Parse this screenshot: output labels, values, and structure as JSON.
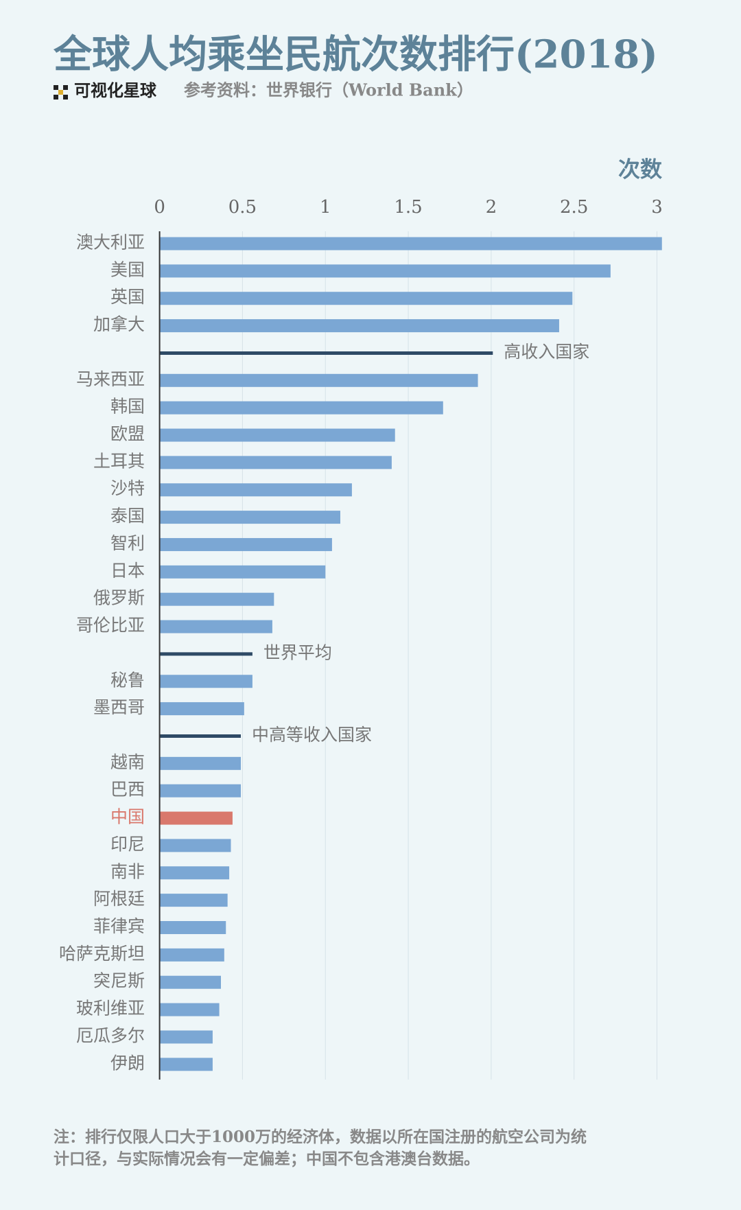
{
  "chart_data": {
    "type": "bar",
    "orientation": "horizontal",
    "title": "全球人均乘坐民航次数排行(2018)",
    "brand": "可视化星球",
    "source": "参考资料：世界银行（World Bank）",
    "x_label": "次数",
    "categories": [
      "澳大利亚",
      "美国",
      "英国",
      "加拿大",
      "高收入国家",
      "马来西亚",
      "韩国",
      "欧盟",
      "土耳其",
      "沙特",
      "泰国",
      "智利",
      "日本",
      "俄罗斯",
      "哥伦比亚",
      "世界平均",
      "秘鲁",
      "墨西哥",
      "中高等收入国家",
      "越南",
      "巴西",
      "中国",
      "印尼",
      "南非",
      "阿根廷",
      "菲律宾",
      "哈萨克斯坦",
      "突尼斯",
      "玻利维亚",
      "厄瓜多尔",
      "伊朗"
    ],
    "values": [
      3.03,
      2.72,
      2.49,
      2.41,
      2.01,
      1.92,
      1.71,
      1.42,
      1.4,
      1.16,
      1.09,
      1.04,
      1.0,
      0.69,
      0.68,
      0.56,
      0.56,
      0.51,
      0.49,
      0.49,
      0.49,
      0.44,
      0.43,
      0.42,
      0.41,
      0.4,
      0.39,
      0.37,
      0.36,
      0.32,
      0.32
    ],
    "mark_styles": [
      "bar",
      "bar",
      "bar",
      "bar",
      "line",
      "bar",
      "bar",
      "bar",
      "bar",
      "bar",
      "bar",
      "bar",
      "bar",
      "bar",
      "bar",
      "line",
      "bar",
      "bar",
      "line",
      "bar",
      "bar",
      "bar",
      "bar",
      "bar",
      "bar",
      "bar",
      "bar",
      "bar",
      "bar",
      "bar",
      "bar"
    ],
    "colors": [
      "#7ba7d4",
      "#7ba7d4",
      "#7ba7d4",
      "#7ba7d4",
      "#2e4a66",
      "#7ba7d4",
      "#7ba7d4",
      "#7ba7d4",
      "#7ba7d4",
      "#7ba7d4",
      "#7ba7d4",
      "#7ba7d4",
      "#7ba7d4",
      "#7ba7d4",
      "#7ba7d4",
      "#2e4a66",
      "#7ba7d4",
      "#7ba7d4",
      "#2e4a66",
      "#7ba7d4",
      "#7ba7d4",
      "#d9786c",
      "#7ba7d4",
      "#7ba7d4",
      "#7ba7d4",
      "#7ba7d4",
      "#7ba7d4",
      "#7ba7d4",
      "#7ba7d4",
      "#7ba7d4",
      "#7ba7d4"
    ],
    "xlim": [
      0,
      3.05
    ],
    "xticks": [
      0,
      0.5,
      1,
      1.5,
      2,
      2.5,
      3
    ],
    "grid": true,
    "note": [
      "注：排行仅限人口大于1000万的经济体，数据以所在国注册的航空公司为统",
      "计口径，与实际情况会有一定偏差；中国不包含港澳台数据。"
    ]
  }
}
